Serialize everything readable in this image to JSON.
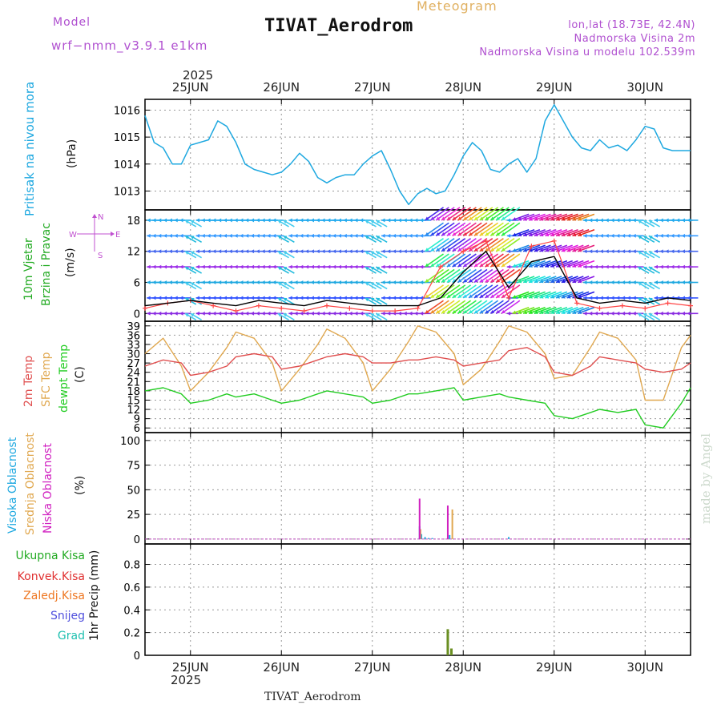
{
  "header": {
    "model_label": "Model",
    "model_name": "wrf−nmm_v3.9.1  e1km",
    "title": "TIVAT_Aerodrom",
    "subtitle": "Meteogram",
    "coords": "lon,lat (18.73E, 42.4N)",
    "altitude": "Nadmorska Visina 2m",
    "model_altitude": "Nadmorska Visina u modelu 102.539m",
    "year_top": "2025",
    "year_bottom": "2025",
    "footer": "TIVAT_Aerodrom",
    "watermark": "made by Angel"
  },
  "colors": {
    "pressure": "#1ea8e0",
    "temp2m": "#e05050",
    "sfc_temp": "#e0a850",
    "dewpt": "#22cc22",
    "wind_speed": "#000000",
    "gust": "#ff4444",
    "high_cloud": "#1ea8e0",
    "mid_cloud": "#e0a850",
    "low_cloud": "#d020c0",
    "total_precip": "#22aa22",
    "conv_precip": "#e03030",
    "frz_precip": "#ee7722",
    "snow": "#5050dd",
    "grad": "#20c0b0"
  },
  "x_axis": {
    "ticks": [
      "25JUN",
      "26JUN",
      "27JUN",
      "28JUN",
      "29JUN",
      "30JUN"
    ]
  },
  "panels": {
    "pressure": {
      "ylabel": "Pritisak na nivou mora",
      "unit": "(hPa)"
    },
    "wind": {
      "ylabel1": "10m Vjetar",
      "ylabel2": "Brzina i Pravac",
      "unit": "(m/s)",
      "compass_n": "N",
      "compass_s": "S",
      "compass_e": "E",
      "compass_w": "W"
    },
    "temperature": {
      "ylabel1": "2m Temp",
      "ylabel2": "SFC Temp",
      "ylabel3": "dewpt Temp",
      "unit": "(C)"
    },
    "cloud": {
      "ylabel1": "Visoka Oblacnost",
      "ylabel2": "Srednja Oblacnost",
      "ylabel3": "Niska Oblacnost",
      "unit": "(%)"
    },
    "precip": {
      "legend": [
        "Ukupna Kisa",
        "Konvek.Kisa",
        "Zaledj.Kisa",
        "Snijeg",
        "Grad"
      ],
      "ylabel": "1hr Precip (mm)"
    }
  },
  "chart_data": [
    {
      "type": "line",
      "title": "Pritisak na nivou mora",
      "ylabel": "(hPa)",
      "ylim": [
        1012.3,
        1016.4
      ],
      "yticks": [
        1013,
        1014,
        1015,
        1016
      ],
      "x_days": [
        24.5,
        24.6,
        24.7,
        24.8,
        24.9,
        25.0,
        25.1,
        25.2,
        25.3,
        25.4,
        25.5,
        25.6,
        25.7,
        25.8,
        25.9,
        26.0,
        26.1,
        26.2,
        26.3,
        26.4,
        26.5,
        26.6,
        26.7,
        26.8,
        26.9,
        27.0,
        27.1,
        27.2,
        27.3,
        27.4,
        27.5,
        27.6,
        27.7,
        27.8,
        27.9,
        28.0,
        28.1,
        28.2,
        28.3,
        28.4,
        28.5,
        28.6,
        28.7,
        28.8,
        28.9,
        29.0,
        29.1,
        29.2,
        29.3,
        29.4,
        29.5,
        29.6,
        29.7,
        29.8,
        29.9,
        30.0,
        30.1,
        30.2,
        30.3,
        30.4,
        30.5
      ],
      "series": [
        {
          "name": "Pritisak na nivou mora",
          "values": [
            1015.8,
            1014.8,
            1014.6,
            1014.0,
            1014.0,
            1014.7,
            1014.8,
            1014.9,
            1015.6,
            1015.4,
            1014.8,
            1014.0,
            1013.8,
            1013.7,
            1013.6,
            1013.7,
            1014.0,
            1014.4,
            1014.1,
            1013.5,
            1013.3,
            1013.5,
            1013.6,
            1013.6,
            1014.0,
            1014.3,
            1014.5,
            1013.8,
            1013.0,
            1012.5,
            1012.9,
            1013.1,
            1012.9,
            1013.0,
            1013.6,
            1014.3,
            1014.8,
            1014.5,
            1013.8,
            1013.7,
            1014.0,
            1014.2,
            1013.7,
            1014.2,
            1015.6,
            1016.2,
            1015.6,
            1015.0,
            1014.6,
            1014.5,
            1014.9,
            1014.6,
            1014.7,
            1014.5,
            1014.9,
            1015.4,
            1015.3,
            1014.6,
            1014.5,
            1014.5,
            1014.5
          ]
        }
      ]
    },
    {
      "type": "line",
      "title": "10m Vjetar Brzina i Pravac",
      "ylabel": "(m/s)",
      "ylim": [
        -1.5,
        20
      ],
      "yticks": [
        0,
        6,
        12,
        18
      ],
      "x_days": [
        24.5,
        24.75,
        25.0,
        25.25,
        25.5,
        25.75,
        26.0,
        26.25,
        26.5,
        26.75,
        27.0,
        27.25,
        27.5,
        27.75,
        28.0,
        28.25,
        28.5,
        28.75,
        29.0,
        29.25,
        29.5,
        29.75,
        30.0,
        30.25,
        30.5
      ],
      "series": [
        {
          "name": "speed",
          "values": [
            1.5,
            2.0,
            2.5,
            2.0,
            1.5,
            2.5,
            2.0,
            1.5,
            2.5,
            2.0,
            1.5,
            1.5,
            1.5,
            3.0,
            8.0,
            12.0,
            5.0,
            10.0,
            11.0,
            3.0,
            2.0,
            2.5,
            2.0,
            3.0,
            2.5
          ]
        },
        {
          "name": "gust",
          "values": [
            1.0,
            2.0,
            2.5,
            1.5,
            0.5,
            1.5,
            1.0,
            0.5,
            1.5,
            1.0,
            0.5,
            0.5,
            1.0,
            9.0,
            12.0,
            14.0,
            3.0,
            13.0,
            14.0,
            2.0,
            1.0,
            1.5,
            1.0,
            2.0,
            1.5
          ]
        }
      ]
    },
    {
      "type": "line",
      "title": "2m Temp / SFC Temp / dewpt Temp",
      "ylabel": "(C)",
      "ylim": [
        4.5,
        40.5
      ],
      "yticks": [
        6,
        9,
        12,
        15,
        18,
        21,
        24,
        27,
        30,
        33,
        36,
        39
      ],
      "x_days": [
        24.5,
        24.7,
        24.9,
        25.0,
        25.2,
        25.4,
        25.5,
        25.7,
        25.9,
        26.0,
        26.2,
        26.4,
        26.5,
        26.7,
        26.9,
        27.0,
        27.2,
        27.4,
        27.5,
        27.7,
        27.9,
        28.0,
        28.2,
        28.4,
        28.5,
        28.7,
        28.9,
        29.0,
        29.2,
        29.4,
        29.5,
        29.7,
        29.9,
        30.0,
        30.2,
        30.4,
        30.5
      ],
      "series": [
        {
          "name": "2m Temp",
          "values": [
            26,
            28,
            27,
            23,
            24,
            26,
            29,
            30,
            29,
            25,
            26,
            28,
            29,
            30,
            29,
            27,
            27,
            28,
            28,
            29,
            28,
            26,
            27,
            28,
            31,
            32,
            29,
            24,
            23,
            26,
            29,
            28,
            27,
            25,
            24,
            25,
            27
          ]
        },
        {
          "name": "SFC Temp",
          "values": [
            30,
            35,
            26,
            18,
            24,
            32,
            37,
            35,
            27,
            18,
            25,
            33,
            38,
            35,
            27,
            18,
            25,
            34,
            39,
            37,
            30,
            20,
            25,
            34,
            39,
            37,
            30,
            22,
            23,
            32,
            37,
            35,
            28,
            15,
            15,
            32,
            36
          ]
        },
        {
          "name": "dewpt Temp",
          "values": [
            18,
            19,
            17,
            14,
            15,
            17,
            16,
            17,
            15,
            14,
            15,
            17,
            18,
            17,
            16,
            14,
            15,
            17,
            17,
            18,
            19,
            15,
            16,
            17,
            16,
            15,
            14,
            10,
            9,
            11,
            12,
            11,
            12,
            7,
            6,
            14,
            19
          ]
        }
      ]
    },
    {
      "type": "bar",
      "title": "Visoka / Srednja / Niska Oblacnost",
      "ylabel": "(%)",
      "ylim": [
        -5,
        108
      ],
      "yticks": [
        0,
        25,
        50,
        75,
        100
      ],
      "series": [
        {
          "name": "Visoka Oblacnost",
          "x": [
            27.52,
            27.54,
            27.58,
            27.62,
            27.66,
            27.85,
            28.5
          ],
          "values": [
            13,
            5,
            2,
            1,
            1,
            4,
            2
          ]
        },
        {
          "name": "Srednja Oblacnost",
          "x": [
            27.53,
            27.88
          ],
          "values": [
            10,
            30
          ]
        },
        {
          "name": "Niska Oblacnost",
          "x": [
            27.52,
            27.83
          ],
          "values": [
            41,
            34
          ]
        }
      ]
    },
    {
      "type": "bar",
      "title": "1hr Precip",
      "ylabel": "(mm)",
      "ylim": [
        0,
        0.98
      ],
      "yticks": [
        0,
        0.2,
        0.4,
        0.6,
        0.8
      ],
      "series": [
        {
          "name": "Ukupna Kisa",
          "x": [
            27.83,
            27.87
          ],
          "values": [
            0.23,
            0.06
          ]
        }
      ]
    }
  ]
}
